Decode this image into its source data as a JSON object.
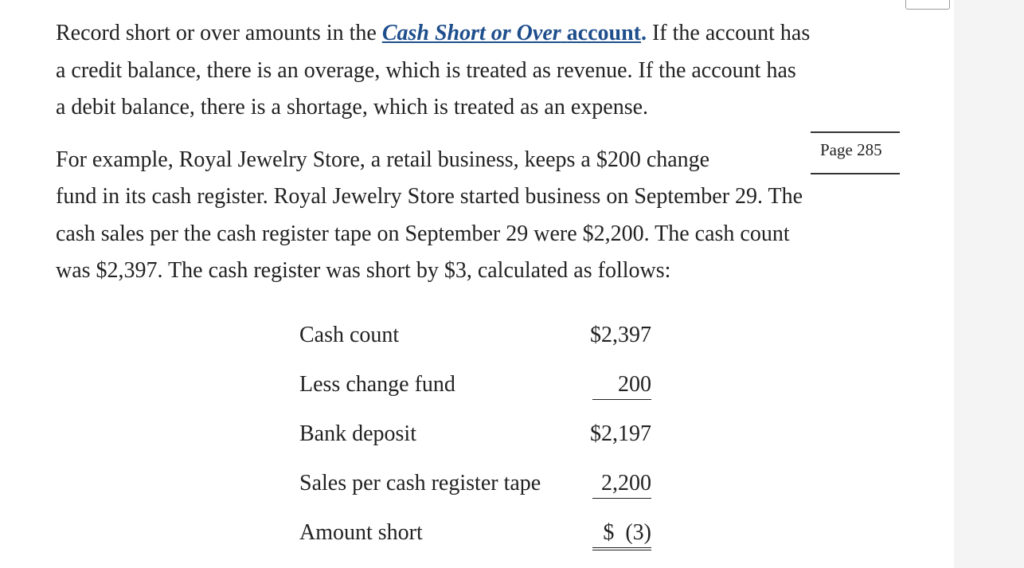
{
  "paragraph1": {
    "line1_start": "Record short or over amounts in the ",
    "term_italic": "Cash Short or Over",
    "term_space": " ",
    "term_plain": "account",
    "term_dot": ".",
    "line1_end": " If the account has",
    "line2": "a credit balance, there is an overage, which is treated as revenue. If the account has",
    "line3": "a debit balance, there is a shortage, which is treated as an expense."
  },
  "page_marker": "Page 285",
  "paragraph2": {
    "line1": "For example, Royal Jewelry Store, a retail business, keeps a $200 change",
    "line2": "fund in its cash register. Royal Jewelry Store started business on September 29. The",
    "line3": "cash sales per the cash register tape on September 29 were $2,200. The cash count",
    "line4": "was $2,397. The cash register was short by $3, calculated as follows:"
  },
  "calculation": {
    "rows": [
      {
        "label": "Cash count",
        "amount": "$2,397"
      },
      {
        "label": "Less change fund",
        "amount": "200"
      },
      {
        "label": "Bank deposit",
        "amount": "$2,197"
      },
      {
        "label": "Sales per cash register tape",
        "amount": "2,200"
      },
      {
        "label": "Amount short",
        "amount": "$  (3)"
      }
    ]
  }
}
